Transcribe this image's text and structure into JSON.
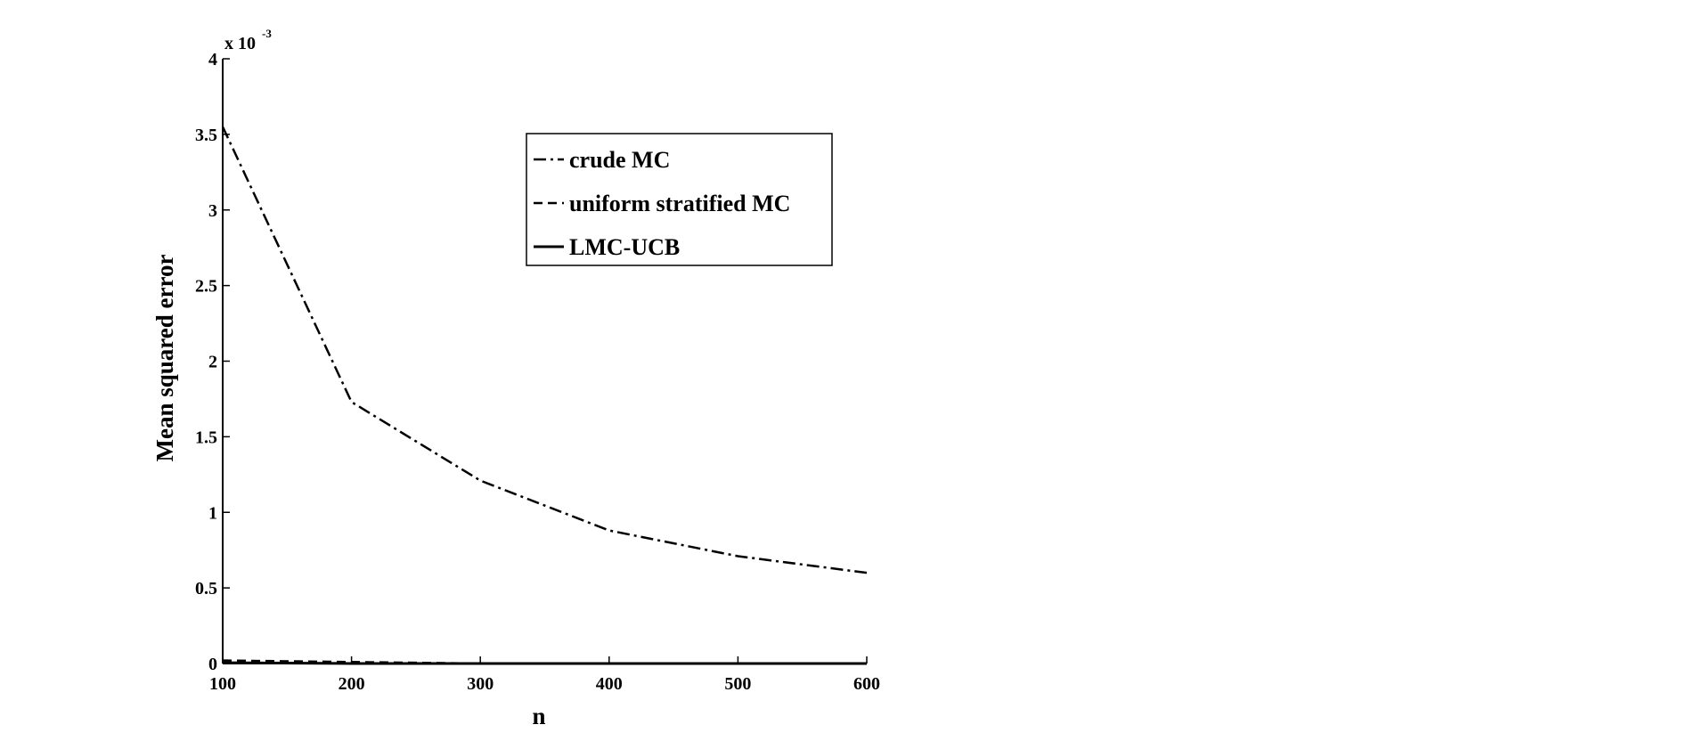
{
  "chart_data": {
    "type": "line",
    "title": "",
    "xlabel": "n",
    "ylabel": "Mean squared error",
    "y_multiplier_label": "x 10",
    "y_multiplier_exponent": "-3",
    "xlim": [
      100,
      600
    ],
    "ylim": [
      0,
      4
    ],
    "x_ticks": [
      "100",
      "200",
      "300",
      "400",
      "500",
      "600"
    ],
    "y_ticks": [
      "0",
      "0.5",
      "1",
      "1.5",
      "2",
      "2.5",
      "3",
      "3.5",
      "4"
    ],
    "grid": false,
    "legend_position": "top-right",
    "x": [
      100,
      200,
      300,
      400,
      500,
      600
    ],
    "series": [
      {
        "name": "crude MC",
        "style": "dash-dot",
        "values": [
          3.55,
          1.73,
          1.21,
          0.88,
          0.71,
          0.6
        ]
      },
      {
        "name": "uniform stratified MC",
        "style": "dashed",
        "values": [
          0.02,
          0.01,
          0.0,
          0.0,
          0.0,
          0.0
        ]
      },
      {
        "name": "LMC-UCB",
        "style": "solid",
        "values": [
          0.005,
          0.0,
          0.0,
          0.0,
          0.0,
          0.0
        ]
      }
    ],
    "line_color": "#000000"
  }
}
